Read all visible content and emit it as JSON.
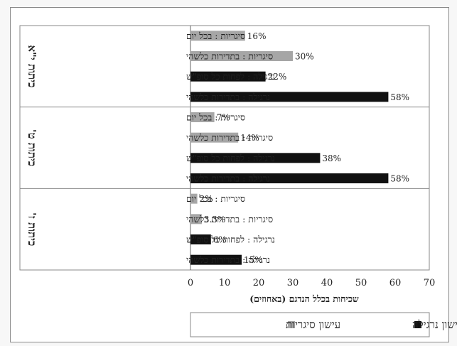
{
  "chart_data": {
    "type": "bar",
    "orientation": "horizontal",
    "xlim": [
      0,
      70
    ],
    "xticks": [
      0,
      10,
      20,
      30,
      40,
      50,
      60,
      70
    ],
    "xlabel": "שכיחות בכלל הנדגם (באחוזים)",
    "unit": "%",
    "grid": false,
    "legend_position": "bottom",
    "colors": {
      "cigarettes": "#a6a6a6",
      "nargila": "#111111"
    },
    "groups": [
      {
        "name": "כיתות י\"א",
        "bars": [
          {
            "label": "סיגריות : בכל יום",
            "series": "cigarettes",
            "value": 16,
            "value_label": "16%"
          },
          {
            "label": "סיגריות : בתדירות כלשהי",
            "series": "cigarettes",
            "value": 30,
            "value_label": "30%"
          },
          {
            "label": "נרגילה : לפחות כל סופ\"ש",
            "series": "nargila",
            "value": 22,
            "value_label": "22%"
          },
          {
            "label": "נרגילה : בתדירות כלשהי",
            "series": "nargila",
            "value": 58,
            "value_label": "58%"
          }
        ]
      },
      {
        "name": "כיתות ט'",
        "bars": [
          {
            "label": "סיגריות : בכל יום",
            "series": "cigarettes",
            "value": 7,
            "value_label": "7%"
          },
          {
            "label": "סיגריות : בתדירות כלשהי",
            "series": "cigarettes",
            "value": 14,
            "value_label": "14%"
          },
          {
            "label": "נרגילה : לפחות כל סופ\"ש",
            "series": "nargila",
            "value": 38,
            "value_label": "38%"
          },
          {
            "label": "נרגילה : בתדירות כלשהי",
            "series": "nargila",
            "value": 58,
            "value_label": "58%"
          }
        ]
      },
      {
        "name": "כיתות ז'",
        "bars": [
          {
            "label": "סיגריות : בכל יום",
            "series": "cigarettes",
            "value": 2,
            "value_label": "2%"
          },
          {
            "label": "סיגריות : בתדירות כלשהי",
            "series": "cigarettes",
            "value": 3.3,
            "value_label": "3.3%"
          },
          {
            "label": "נרגילה : לפחות כל סופ\"ש",
            "series": "nargila",
            "value": 6,
            "value_label": "6%"
          },
          {
            "label": "נרגילה : בתדירות כלשהי",
            "series": "nargila",
            "value": 15,
            "value_label": "15%"
          }
        ]
      }
    ],
    "legend": [
      {
        "series": "nargila",
        "label": "עישון נרגילה"
      },
      {
        "series": "cigarettes",
        "label": "עישון סיגריות"
      }
    ]
  }
}
